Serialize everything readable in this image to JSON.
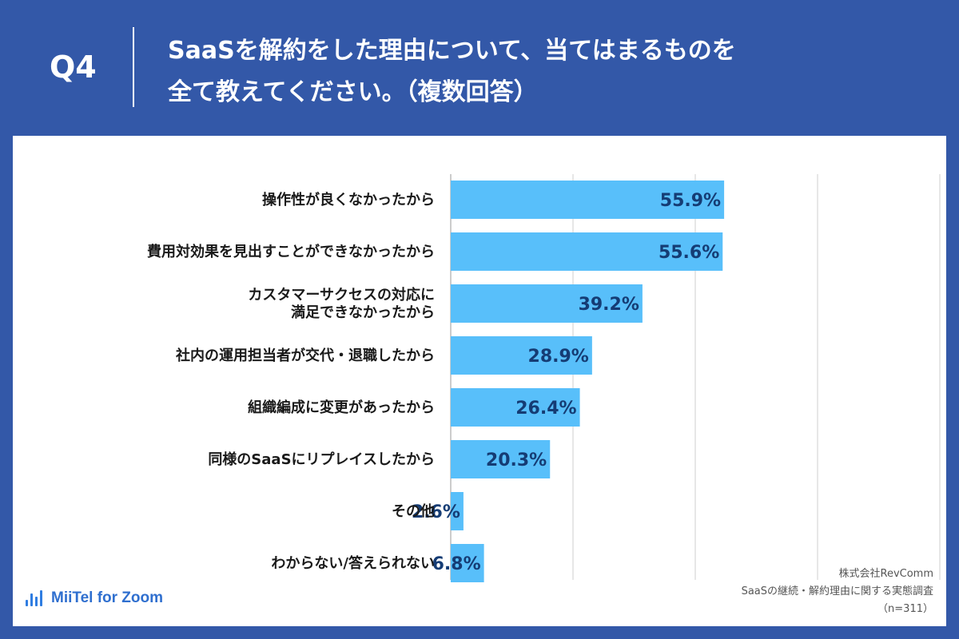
{
  "header": {
    "q_label": "Q4",
    "title_line1": "SaaSを解約をした理由について、当てはまるものを",
    "title_line2": "全て教えてください。（複数回答）"
  },
  "logo": {
    "text": "MiiTel for Zoom",
    "icon": "audio-wave-icon"
  },
  "source": {
    "company": "株式会社RevComm",
    "survey": "SaaSの継続・解約理由に関する実態調査",
    "sample": "（n=311）"
  },
  "colors": {
    "background": "#3358a8",
    "bar": "#58bffa",
    "value_text": "#153c74",
    "grid": "#cfcfcf"
  },
  "chart_data": {
    "type": "bar",
    "orientation": "horizontal",
    "xlim": [
      0,
      100
    ],
    "grid": true,
    "categories": [
      [
        "操作性が良くなかったから"
      ],
      [
        "費用対効果を見出すことができなかったから"
      ],
      [
        "カスタマーサクセスの対応に",
        "満足できなかったから"
      ],
      [
        "社内の運用担当者が交代・退職したから"
      ],
      [
        "組織編成に変更があったから"
      ],
      [
        "同様のSaaSにリプレイスしたから"
      ],
      [
        "その他"
      ],
      [
        "わからない/答えられない"
      ]
    ],
    "values": [
      55.9,
      55.6,
      39.2,
      28.9,
      26.4,
      20.3,
      2.6,
      6.8
    ],
    "value_labels": [
      "55.9%",
      "55.6%",
      "39.2%",
      "28.9%",
      "26.4%",
      "20.3%",
      "2.6%",
      "6.8%"
    ]
  }
}
